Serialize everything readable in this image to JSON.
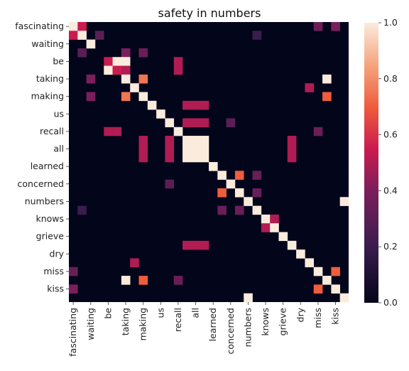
{
  "chart_data": {
    "type": "heatmap",
    "title": "safety in numbers",
    "labels": [
      "fascinating",
      "_",
      "waiting",
      "_",
      "be",
      "_",
      "taking",
      "_",
      "making",
      "_",
      "us",
      "_",
      "recall",
      "_",
      "all",
      "_",
      "learned",
      "_",
      "concerned",
      "_",
      "numbers",
      "_",
      "knows",
      "_",
      "grieve",
      "_",
      "dry",
      "_",
      "miss",
      "_",
      "kiss",
      "_"
    ],
    "shown_tick_labels": [
      "fascinating",
      "waiting",
      "be",
      "taking",
      "making",
      "us",
      "recall",
      "all",
      "learned",
      "concerned",
      "numbers",
      "knows",
      "grieve",
      "dry",
      "miss",
      "kiss"
    ],
    "colorbar": {
      "min": 0.0,
      "max": 1.0,
      "ticks": [
        "0.0",
        "0.2",
        "0.4",
        "0.6",
        "0.8",
        "1.0"
      ]
    },
    "cells": [
      [
        0,
        0,
        1
      ],
      [
        0,
        1,
        0.55
      ],
      [
        0,
        28,
        0.35
      ],
      [
        0,
        30,
        0.4
      ],
      [
        1,
        0,
        0.55
      ],
      [
        1,
        1,
        1
      ],
      [
        1,
        3,
        0.3
      ],
      [
        1,
        21,
        0.2
      ],
      [
        2,
        2,
        1
      ],
      [
        3,
        1,
        0.3
      ],
      [
        3,
        6,
        0.4
      ],
      [
        3,
        8,
        0.35
      ],
      [
        4,
        4,
        0.55
      ],
      [
        4,
        5,
        1
      ],
      [
        4,
        6,
        1
      ],
      [
        4,
        12,
        0.5
      ],
      [
        5,
        4,
        1
      ],
      [
        5,
        5,
        0.55
      ],
      [
        5,
        6,
        0.5
      ],
      [
        5,
        12,
        0.5
      ],
      [
        6,
        6,
        1
      ],
      [
        6,
        2,
        0.4
      ],
      [
        6,
        8,
        0.75
      ],
      [
        6,
        29,
        1
      ],
      [
        7,
        7,
        1
      ],
      [
        7,
        27,
        0.5
      ],
      [
        8,
        2,
        0.4
      ],
      [
        8,
        6,
        0.75
      ],
      [
        8,
        8,
        1
      ],
      [
        8,
        29,
        0.7
      ],
      [
        9,
        9,
        1
      ],
      [
        9,
        13,
        0.5
      ],
      [
        9,
        14,
        0.5
      ],
      [
        9,
        15,
        0.5
      ],
      [
        10,
        10,
        1
      ],
      [
        11,
        11,
        1
      ],
      [
        11,
        13,
        0.5
      ],
      [
        11,
        14,
        0.5
      ],
      [
        11,
        15,
        0.5
      ],
      [
        11,
        18,
        0.3
      ],
      [
        12,
        4,
        0.5
      ],
      [
        12,
        5,
        0.5
      ],
      [
        12,
        12,
        1
      ],
      [
        12,
        28,
        0.35
      ],
      [
        13,
        13,
        1
      ],
      [
        13,
        14,
        1
      ],
      [
        13,
        15,
        1
      ],
      [
        13,
        8,
        0.5
      ],
      [
        13,
        11,
        0.5
      ],
      [
        13,
        25,
        0.5
      ],
      [
        14,
        13,
        1
      ],
      [
        14,
        14,
        1
      ],
      [
        14,
        15,
        1
      ],
      [
        14,
        8,
        0.5
      ],
      [
        14,
        11,
        0.5
      ],
      [
        14,
        25,
        0.5
      ],
      [
        15,
        13,
        1
      ],
      [
        15,
        14,
        1
      ],
      [
        15,
        15,
        1
      ],
      [
        15,
        8,
        0.5
      ],
      [
        15,
        11,
        0.5
      ],
      [
        15,
        25,
        0.5
      ],
      [
        16,
        16,
        1
      ],
      [
        17,
        17,
        1
      ],
      [
        17,
        19,
        0.7
      ],
      [
        17,
        21,
        0.35
      ],
      [
        18,
        18,
        1
      ],
      [
        18,
        11,
        0.3
      ],
      [
        19,
        17,
        0.7
      ],
      [
        19,
        19,
        1
      ],
      [
        19,
        21,
        0.35
      ],
      [
        20,
        20,
        1
      ],
      [
        20,
        31,
        1
      ],
      [
        21,
        21,
        1
      ],
      [
        21,
        1,
        0.2
      ],
      [
        21,
        17,
        0.35
      ],
      [
        21,
        19,
        0.35
      ],
      [
        22,
        22,
        1
      ],
      [
        22,
        23,
        0.5
      ],
      [
        23,
        22,
        0.5
      ],
      [
        23,
        23,
        1
      ],
      [
        24,
        24,
        1
      ],
      [
        25,
        25,
        1
      ],
      [
        25,
        13,
        0.5
      ],
      [
        25,
        14,
        0.5
      ],
      [
        25,
        15,
        0.5
      ],
      [
        26,
        26,
        1
      ],
      [
        27,
        27,
        1
      ],
      [
        27,
        7,
        0.5
      ],
      [
        28,
        28,
        1
      ],
      [
        28,
        0,
        0.35
      ],
      [
        28,
        30,
        0.7
      ],
      [
        29,
        29,
        1
      ],
      [
        29,
        6,
        1
      ],
      [
        29,
        8,
        0.7
      ],
      [
        29,
        12,
        0.35
      ],
      [
        30,
        30,
        1
      ],
      [
        30,
        0,
        0.4
      ],
      [
        30,
        28,
        0.7
      ],
      [
        31,
        31,
        1
      ],
      [
        31,
        20,
        1
      ]
    ]
  }
}
